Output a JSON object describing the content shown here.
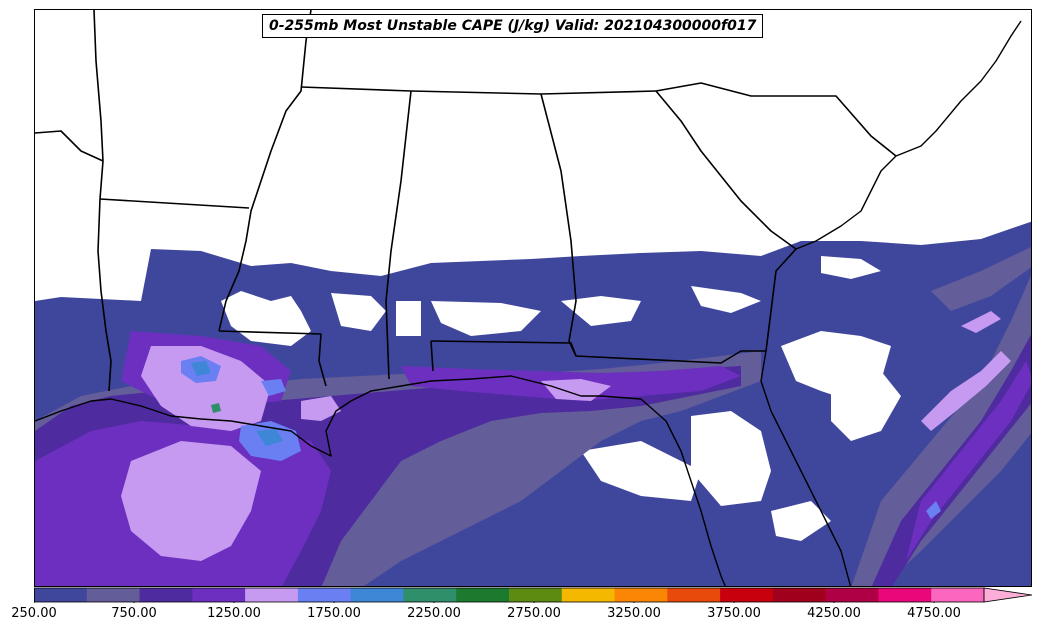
{
  "title": "0-255mb Most Unstable CAPE (J/kg) Valid: 202104300000f017",
  "colorbar": {
    "min": 250,
    "max": 5000,
    "step": 250,
    "extend": "max",
    "colors": [
      "#3f479d",
      "#635d99",
      "#4e2b9e",
      "#6d2fc0",
      "#c79af2",
      "#6a7ff2",
      "#3e86d6",
      "#2e8f6a",
      "#1b7a2e",
      "#5d8a10",
      "#f5b800",
      "#fb8505",
      "#e84a0c",
      "#c8000e",
      "#a0001c",
      "#b00045",
      "#e8087a",
      "#fb67bf",
      "#fcadd8"
    ],
    "tick_labels": [
      "250.00",
      "750.00",
      "1250.00",
      "1750.00",
      "2250.00",
      "2750.00",
      "3250.00",
      "3750.00",
      "4250.00",
      "4750.00"
    ],
    "tick_values": [
      250,
      750,
      1250,
      1750,
      2250,
      2750,
      3250,
      3750,
      4250,
      4750
    ]
  }
}
